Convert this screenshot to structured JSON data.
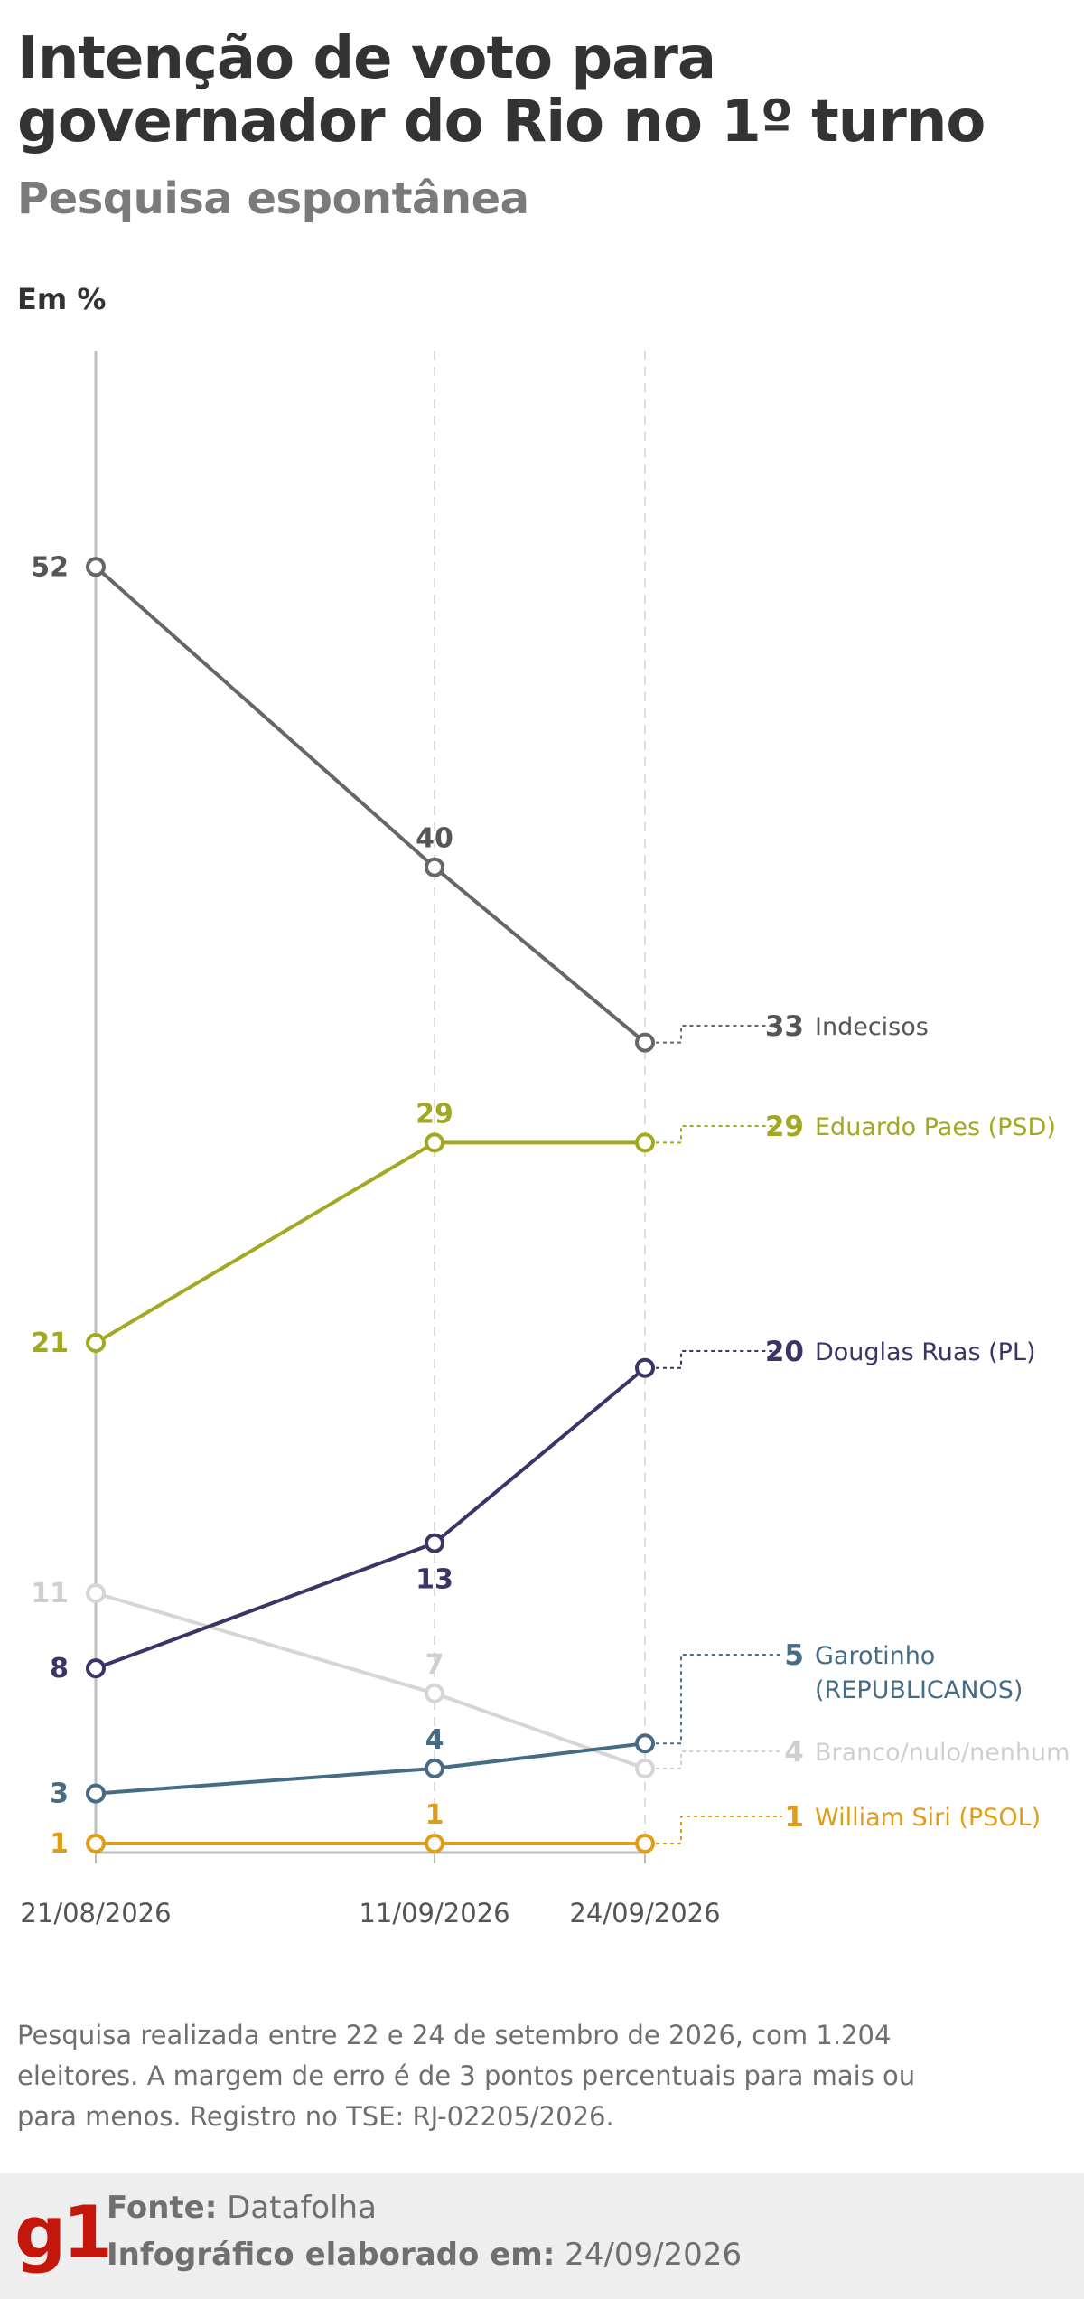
{
  "header": {
    "title": "Intenção de voto para governador do Rio no 1º turno",
    "subtitle": "Pesquisa espontânea",
    "unit": "Em %"
  },
  "chart_data": {
    "type": "line",
    "x": [
      "21/08/2026",
      "11/09/2026",
      "24/09/2026"
    ],
    "ylim": [
      0,
      60
    ],
    "series": [
      {
        "name": "Indecisos",
        "values": [
          52,
          40,
          33
        ],
        "color": "#666666"
      },
      {
        "name": "Eduardo Paes (PSD)",
        "values": [
          21,
          29,
          29
        ],
        "color": "#a2a921"
      },
      {
        "name": "Douglas Ruas (PL)",
        "values": [
          8,
          13,
          20
        ],
        "color": "#3a3566"
      },
      {
        "name": "Garotinho (REPUBLICANOS)",
        "values": [
          3,
          4,
          5
        ],
        "color": "#466b85"
      },
      {
        "name": "Branco/nulo/nenhum",
        "values": [
          11,
          7,
          4
        ],
        "color": "#d6d6d6"
      },
      {
        "name": "William Siri (PSOL)",
        "values": [
          1,
          1,
          1
        ],
        "color": "#e09d19"
      }
    ],
    "end_labels": [
      {
        "value": "33",
        "name": "Indecisos"
      },
      {
        "value": "29",
        "name": "Eduardo Paes (PSD)"
      },
      {
        "value": "20",
        "name": "Douglas Ruas (PL)"
      },
      {
        "value": "5",
        "name": "Garotinho",
        "name2": "(REPUBLICANOS)"
      },
      {
        "value": "4",
        "name": "Branco/nulo/nenhum"
      },
      {
        "value": "1",
        "name": "William Siri (PSOL)"
      }
    ]
  },
  "note": "Pesquisa realizada entre 22 e 24 de setembro de 2026, com 1.204 eleitores. A margem de erro é de 3 pontos percentuais para mais ou para menos. Registro no TSE: RJ-02205/2026.",
  "footer": {
    "logo": "g1",
    "source_label": "Fonte:",
    "source_value": "Datafolha",
    "date_label": "Infográfico elaborado em:",
    "date_value": "24/09/2026"
  }
}
